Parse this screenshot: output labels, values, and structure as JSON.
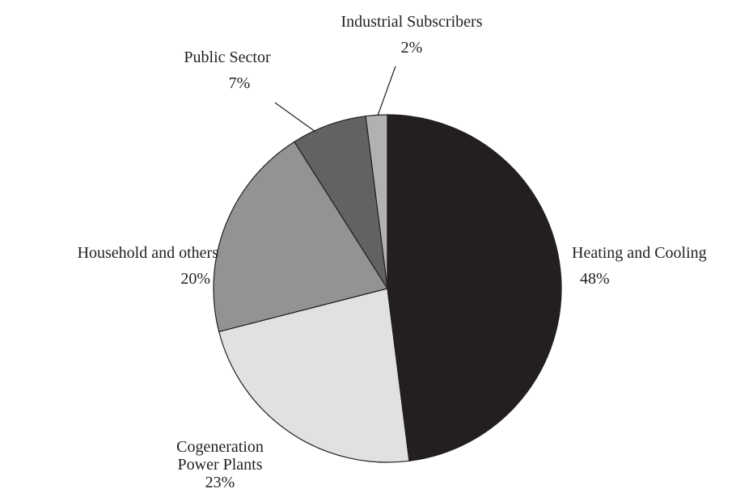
{
  "chart_data": {
    "type": "pie",
    "categories": [
      "Heating and Cooling",
      "Cogeneration Power Plants",
      "Household and others",
      "Public Sector",
      "Industrial Subscribers"
    ],
    "values": [
      48,
      23,
      20,
      7,
      2
    ],
    "value_labels": [
      "48%",
      "23%",
      "20%",
      "7%",
      "2%"
    ],
    "colors": [
      "#231f20",
      "#e1e1e3",
      "#939396",
      "#626265",
      "#b1b1b4"
    ]
  }
}
